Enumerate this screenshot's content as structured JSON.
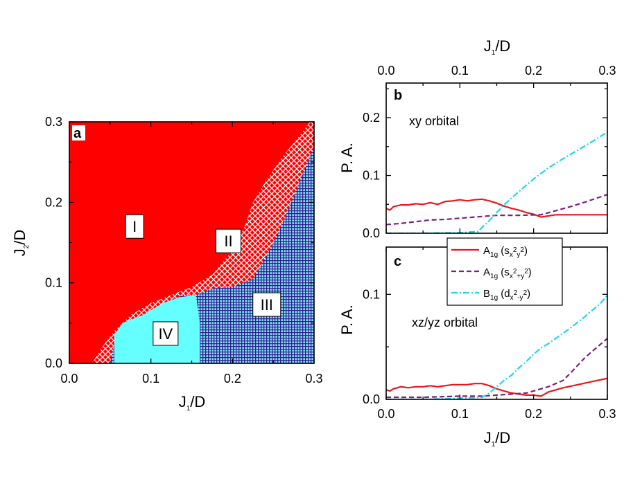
{
  "chart_data": [
    {
      "panel": "a",
      "type": "phase-diagram",
      "xlabel": {
        "main": "J",
        "sub": "1",
        "tail": "/D"
      },
      "ylabel": {
        "main": "J",
        "sub": "2",
        "tail": "/D"
      },
      "xlim": [
        0.0,
        0.3
      ],
      "ylim": [
        0.0,
        0.3
      ],
      "xticks": [
        "0.0",
        "0.1",
        "0.2",
        "0.3"
      ],
      "yticks": [
        "0.0",
        "0.1",
        "0.2",
        "0.3"
      ],
      "colors": {
        "I": "#ff0000",
        "II": "#ff0000",
        "III": "#2a1f8f",
        "IV": "#66ffff"
      },
      "regions": [
        {
          "label": "I",
          "at": [
            0.08,
            0.17
          ]
        },
        {
          "label": "II",
          "at": [
            0.195,
            0.152
          ]
        },
        {
          "label": "III",
          "at": [
            0.242,
            0.073
          ]
        },
        {
          "label": "IV",
          "at": [
            0.118,
            0.037
          ]
        }
      ],
      "boundaries": {
        "I_upper": [
          [
            0.028,
            0.0
          ],
          [
            0.04,
            0.02
          ],
          [
            0.055,
            0.04
          ],
          [
            0.075,
            0.06
          ],
          [
            0.1,
            0.075
          ],
          [
            0.125,
            0.085
          ],
          [
            0.15,
            0.095
          ],
          [
            0.175,
            0.11
          ],
          [
            0.2,
            0.14
          ],
          [
            0.215,
            0.17
          ],
          [
            0.225,
            0.2
          ],
          [
            0.24,
            0.225
          ],
          [
            0.26,
            0.255
          ],
          [
            0.28,
            0.28
          ],
          [
            0.295,
            0.3
          ]
        ],
        "II_upper": [
          [
            0.05,
            0.0
          ],
          [
            0.055,
            0.025
          ],
          [
            0.065,
            0.05
          ],
          [
            0.09,
            0.06
          ],
          [
            0.115,
            0.075
          ],
          [
            0.14,
            0.085
          ],
          [
            0.155,
            0.085
          ],
          [
            0.175,
            0.093
          ],
          [
            0.2,
            0.095
          ],
          [
            0.225,
            0.105
          ],
          [
            0.24,
            0.13
          ],
          [
            0.255,
            0.16
          ],
          [
            0.272,
            0.2
          ],
          [
            0.288,
            0.24
          ],
          [
            0.3,
            0.27
          ]
        ],
        "IV": [
          [
            0.055,
            0.0
          ],
          [
            0.055,
            0.035
          ],
          [
            0.065,
            0.05
          ],
          [
            0.09,
            0.06
          ],
          [
            0.115,
            0.075
          ],
          [
            0.135,
            0.082
          ],
          [
            0.155,
            0.085
          ],
          [
            0.16,
            0.05
          ],
          [
            0.16,
            0.0
          ]
        ]
      }
    },
    {
      "panel": "b",
      "type": "line",
      "xlabel": {
        "main": "J",
        "sub": "1",
        "tail": "/D"
      },
      "xaxis_position": "top",
      "ylabel": "P. A.",
      "xlim": [
        0.0,
        0.3
      ],
      "ylim": [
        0.0,
        0.26
      ],
      "xticks": [
        "0.0",
        "0.1",
        "0.2",
        "0.3"
      ],
      "yticks": [
        "0.0",
        "0.1",
        "0.2"
      ],
      "annotation": "xy orbital",
      "series": [
        {
          "name": "A1g (s_x2y2)",
          "color": "#e8161c",
          "dash": "solid",
          "x": [
            0.0,
            0.005,
            0.01,
            0.02,
            0.03,
            0.04,
            0.05,
            0.06,
            0.07,
            0.08,
            0.09,
            0.1,
            0.11,
            0.12,
            0.13,
            0.14,
            0.15,
            0.16,
            0.17,
            0.18,
            0.19,
            0.2,
            0.21,
            0.22,
            0.23,
            0.25,
            0.3
          ],
          "y": [
            0.043,
            0.04,
            0.046,
            0.049,
            0.049,
            0.051,
            0.05,
            0.053,
            0.05,
            0.055,
            0.056,
            0.058,
            0.056,
            0.058,
            0.059,
            0.056,
            0.052,
            0.047,
            0.043,
            0.04,
            0.036,
            0.033,
            0.028,
            0.03,
            0.032,
            0.032,
            0.032
          ]
        },
        {
          "name": "A1g (s_x2+y2)",
          "color": "#7b1f80",
          "dash": "dashed",
          "x": [
            0.0,
            0.02,
            0.04,
            0.06,
            0.08,
            0.1,
            0.12,
            0.13,
            0.15,
            0.18,
            0.21,
            0.23,
            0.25,
            0.27,
            0.3
          ],
          "y": [
            0.015,
            0.017,
            0.02,
            0.023,
            0.024,
            0.026,
            0.028,
            0.029,
            0.031,
            0.031,
            0.032,
            0.039,
            0.046,
            0.054,
            0.067
          ]
        },
        {
          "name": "B1g (d_x2-y2)",
          "color": "#1ed6e6",
          "dash": "dashdot",
          "x": [
            0.0,
            0.05,
            0.1,
            0.125,
            0.13,
            0.14,
            0.15,
            0.16,
            0.17,
            0.18,
            0.19,
            0.2,
            0.22,
            0.24,
            0.26,
            0.28,
            0.3
          ],
          "y": [
            0.0,
            0.0,
            0.001,
            0.003,
            0.01,
            0.022,
            0.036,
            0.049,
            0.061,
            0.072,
            0.083,
            0.094,
            0.113,
            0.129,
            0.144,
            0.159,
            0.175
          ]
        }
      ]
    },
    {
      "panel": "c",
      "type": "line",
      "xlabel": {
        "main": "J",
        "sub": "1",
        "tail": "/D"
      },
      "xaxis_position": "bottom",
      "ylabel": "P. A.",
      "xlim": [
        0.0,
        0.3
      ],
      "ylim": [
        0.0,
        0.145
      ],
      "xticks": [
        "0.0",
        "0.1",
        "0.2",
        "0.3"
      ],
      "yticks": [
        "0.0",
        "0.1"
      ],
      "annotation": "xz/yz orbital",
      "legend": {
        "placement": "top-center",
        "entries": [
          {
            "main": "A",
            "msub": "1g",
            "open": " (s",
            "sub": "x",
            "sup1": "2",
            "sub2": "y",
            "sup2": "2",
            "close": ")",
            "color": "#e8161c",
            "dash": "solid"
          },
          {
            "main": "A",
            "msub": "1g",
            "open": " (s",
            "sub": "x",
            "sup1": "2",
            "sub2": "+y",
            "sup2": "2",
            "close": ")",
            "color": "#7b1f80",
            "dash": "dashed"
          },
          {
            "main": "B",
            "msub": "1g",
            "open": " (d",
            "sub": "x",
            "sup1": "2",
            "sub2": "-y",
            "sup2": "2",
            "close": ")",
            "color": "#1ed6e6",
            "dash": "dashdot"
          }
        ]
      },
      "series": [
        {
          "name": "A1g (s_x2y2)",
          "color": "#e8161c",
          "dash": "solid",
          "x": [
            0.0,
            0.005,
            0.01,
            0.02,
            0.03,
            0.04,
            0.05,
            0.06,
            0.07,
            0.08,
            0.09,
            0.1,
            0.11,
            0.12,
            0.13,
            0.14,
            0.15,
            0.16,
            0.17,
            0.18,
            0.19,
            0.2,
            0.21,
            0.22,
            0.24,
            0.26,
            0.28,
            0.3
          ],
          "y": [
            0.009,
            0.008,
            0.01,
            0.012,
            0.011,
            0.012,
            0.012,
            0.013,
            0.012,
            0.013,
            0.014,
            0.014,
            0.014,
            0.015,
            0.015,
            0.013,
            0.01,
            0.008,
            0.006,
            0.005,
            0.004,
            0.004,
            0.003,
            0.007,
            0.011,
            0.014,
            0.017,
            0.02
          ]
        },
        {
          "name": "A1g (s_x2+y2)",
          "color": "#7b1f80",
          "dash": "dashed",
          "x": [
            0.0,
            0.05,
            0.1,
            0.13,
            0.15,
            0.17,
            0.19,
            0.2,
            0.22,
            0.24,
            0.25,
            0.27,
            0.29,
            0.3
          ],
          "y": [
            0.002,
            0.002,
            0.003,
            0.003,
            0.004,
            0.005,
            0.006,
            0.008,
            0.012,
            0.018,
            0.025,
            0.04,
            0.052,
            0.058
          ]
        },
        {
          "name": "B1g (d_x2-y2)",
          "color": "#1ed6e6",
          "dash": "dashdot",
          "x": [
            0.0,
            0.05,
            0.1,
            0.13,
            0.14,
            0.15,
            0.16,
            0.17,
            0.18,
            0.19,
            0.2,
            0.21,
            0.22,
            0.23,
            0.25,
            0.27,
            0.29,
            0.3
          ],
          "y": [
            0.0,
            0.0,
            0.001,
            0.002,
            0.006,
            0.012,
            0.018,
            0.023,
            0.03,
            0.036,
            0.043,
            0.049,
            0.053,
            0.058,
            0.068,
            0.079,
            0.091,
            0.099
          ]
        }
      ]
    }
  ]
}
